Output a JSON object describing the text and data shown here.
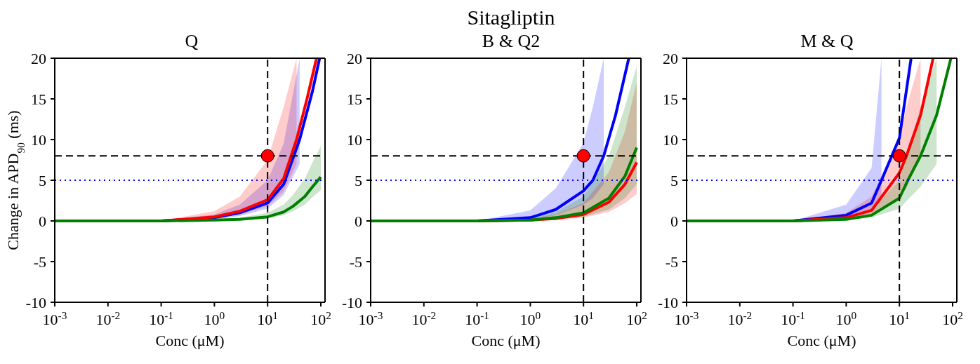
{
  "chart_data": [
    {
      "type": "line",
      "title": "Q",
      "xlabel": "Conc (μM)",
      "ylabel": "Change in APD$_{90}$ (ms)",
      "annotations": [
        "Sitagliptin"
      ],
      "log": "x",
      "xlim": [
        0.001,
        120
      ],
      "ylim": [
        -10,
        20
      ],
      "xticks": [
        {
          "value": 0.001,
          "label": "10$^{-3}$"
        },
        {
          "value": 0.01,
          "label": "10$^{-2}$"
        },
        {
          "value": 0.1,
          "label": "10$^{-1}$"
        },
        {
          "value": 1,
          "label": "10$^{0}$"
        },
        {
          "value": 10,
          "label": "10$^{1}$"
        },
        {
          "value": 100,
          "label": "10$^{2}$"
        }
      ],
      "yticks": [
        -10,
        -5,
        0,
        5,
        10,
        15,
        20
      ],
      "grid": false,
      "legend": false,
      "ref_lines": [
        {
          "axis": "y",
          "value": 8,
          "color": "#000000",
          "line_style": "dashed"
        },
        {
          "axis": "x",
          "value": 10,
          "color": "#000000",
          "line_style": "dashed"
        },
        {
          "axis": "y",
          "value": 5,
          "color": "#0000ff",
          "line_style": "dotted"
        }
      ],
      "series": [
        {
          "color": "#0000ff",
          "x": [
            0.001,
            0.01,
            0.1,
            1,
            3,
            10,
            20,
            40,
            70,
            95
          ],
          "values": [
            null,
            null,
            0,
            0.4,
            1,
            2.2,
            4.5,
            10,
            16,
            20
          ],
          "lower": [
            0,
            0,
            0,
            0.2,
            0.6,
            1.5,
            3.2,
            7,
            null,
            null
          ],
          "upper": [
            0,
            0,
            0,
            0.8,
            2,
            5,
            9.5,
            20,
            null,
            null
          ]
        },
        {
          "color": "#ff0000",
          "x": [
            0.001,
            0.01,
            0.1,
            1,
            3,
            10,
            20,
            35,
            55,
            83
          ],
          "values": [
            0,
            0,
            0,
            0.5,
            1.2,
            2.6,
            5.2,
            10,
            15,
            20
          ],
          "lower": [
            0,
            0,
            0,
            0.3,
            0.8,
            1.8,
            3.6,
            7,
            null,
            null
          ],
          "upper": [
            0,
            0,
            0,
            1.2,
            3,
            7.5,
            14,
            20,
            null,
            null
          ]
        },
        {
          "color": "#007f00",
          "x": [
            0.001,
            0.01,
            0.1,
            1,
            3,
            10,
            20,
            30,
            50,
            70,
            100
          ],
          "values": [
            0,
            0,
            0,
            0.1,
            0.2,
            0.5,
            1.1,
            1.8,
            3,
            4.2,
            5.4
          ],
          "lower": [
            0,
            0,
            0,
            0.05,
            0.1,
            0.3,
            0.7,
            1.2,
            2,
            2.9,
            3.8
          ],
          "upper": [
            0,
            0,
            0,
            0.2,
            0.4,
            1,
            2,
            3.2,
            5.2,
            7.2,
            9.2
          ]
        },
        {
          "type": "scatter",
          "color": "#ff0000",
          "marker": "circle",
          "x": [
            10
          ],
          "values": [
            8
          ]
        }
      ]
    },
    {
      "type": "line",
      "title": "B & Q2",
      "xlabel": "Conc (μM)",
      "log": "x",
      "xlim": [
        0.001,
        120
      ],
      "ylim": [
        -10,
        20
      ],
      "xticks": [
        {
          "value": 0.001,
          "label": "10$^{-3}$"
        },
        {
          "value": 0.01,
          "label": "10$^{-2}$"
        },
        {
          "value": 0.1,
          "label": "10$^{-1}$"
        },
        {
          "value": 1,
          "label": "10$^{0}$"
        },
        {
          "value": 10,
          "label": "10$^{1}$"
        },
        {
          "value": 100,
          "label": "10$^{2}$"
        }
      ],
      "yticks": [
        -10,
        -5,
        0,
        5,
        10,
        15,
        20
      ],
      "grid": false,
      "legend": false,
      "ref_lines": [
        {
          "axis": "y",
          "value": 8,
          "color": "#000000",
          "line_style": "dashed"
        },
        {
          "axis": "x",
          "value": 10,
          "color": "#000000",
          "line_style": "dashed"
        },
        {
          "axis": "y",
          "value": 5,
          "color": "#0000ff",
          "line_style": "dotted"
        }
      ],
      "series": [
        {
          "color": "#0000ff",
          "x": [
            0.001,
            0.01,
            0.1,
            1,
            3,
            10,
            15,
            24,
            40,
            71
          ],
          "values": [
            0,
            0,
            0,
            0.4,
            1.4,
            3.7,
            5,
            8,
            13,
            20
          ],
          "lower": [
            0,
            0,
            0,
            0.2,
            0.7,
            2,
            2.8,
            4.5,
            null,
            null
          ],
          "upper": [
            0,
            0,
            0,
            1.3,
            4,
            9.6,
            14,
            20,
            null,
            null
          ]
        },
        {
          "color": "#ff0000",
          "x": [
            0.001,
            0.01,
            0.1,
            1,
            3,
            10,
            30,
            60,
            100
          ],
          "values": [
            null,
            null,
            0,
            0.1,
            0.3,
            0.8,
            2.3,
            4.5,
            7.2
          ],
          "lower": [
            0,
            0,
            0,
            0.05,
            0.1,
            0.4,
            1.1,
            2.2,
            3.3
          ],
          "upper": [
            0,
            0,
            0,
            0.3,
            0.8,
            2.2,
            6,
            11,
            17
          ]
        },
        {
          "color": "#007f00",
          "x": [
            0.001,
            0.01,
            0.1,
            1,
            3,
            10,
            30,
            60,
            100
          ],
          "values": [
            0,
            0,
            0,
            0.1,
            0.4,
            1,
            2.8,
            5.5,
            9
          ],
          "lower": [
            0,
            0,
            0,
            0.05,
            0.2,
            0.5,
            1.4,
            2.8,
            4.5
          ],
          "upper": [
            0,
            0,
            0,
            0.4,
            1.1,
            3,
            8,
            14,
            19
          ]
        },
        {
          "type": "scatter",
          "color": "#ff0000",
          "marker": "circle",
          "x": [
            10
          ],
          "values": [
            8
          ]
        }
      ]
    },
    {
      "type": "line",
      "title": "M & Q",
      "xlabel": "Conc (μM)",
      "log": "x",
      "xlim": [
        0.001,
        120
      ],
      "ylim": [
        -10,
        20
      ],
      "xticks": [
        {
          "value": 0.001,
          "label": "10$^{-3}$"
        },
        {
          "value": 0.01,
          "label": "10$^{-2}$"
        },
        {
          "value": 0.1,
          "label": "10$^{-1}$"
        },
        {
          "value": 1,
          "label": "10$^{0}$"
        },
        {
          "value": 10,
          "label": "10$^{1}$"
        },
        {
          "value": 100,
          "label": "10$^{2}$"
        }
      ],
      "yticks": [
        -10,
        -5,
        0,
        5,
        10,
        15,
        20
      ],
      "grid": false,
      "legend": false,
      "ref_lines": [
        {
          "axis": "y",
          "value": 8,
          "color": "#000000",
          "line_style": "dashed"
        },
        {
          "axis": "x",
          "value": 10,
          "color": "#000000",
          "line_style": "dashed"
        },
        {
          "axis": "y",
          "value": 5,
          "color": "#0000ff",
          "line_style": "dotted"
        }
      ],
      "series": [
        {
          "color": "#0000ff",
          "x": [
            0.001,
            0.01,
            0.1,
            1,
            3,
            4.6,
            10,
            16.6
          ],
          "values": [
            0,
            0,
            0,
            0.7,
            2.2,
            5,
            10.2,
            20
          ],
          "lower": [
            0,
            0,
            0,
            0.4,
            1.2,
            2.5,
            null,
            null
          ],
          "upper": [
            0,
            0,
            0,
            2,
            6.5,
            20,
            null,
            null
          ]
        },
        {
          "color": "#ff0000",
          "x": [
            0.001,
            0.01,
            0.1,
            1,
            3,
            10,
            13.6,
            25,
            43
          ],
          "values": [
            0,
            0,
            0,
            0.4,
            1.3,
            5.9,
            8,
            13,
            20
          ],
          "lower": [
            0,
            0,
            0,
            0.2,
            0.6,
            2.8,
            4,
            8,
            null
          ],
          "upper": [
            0,
            0,
            0,
            1,
            3,
            10,
            14,
            20,
            null
          ]
        },
        {
          "color": "#007f00",
          "x": [
            0.001,
            0.01,
            0.1,
            1,
            3,
            10,
            14.4,
            25,
            50,
            93
          ],
          "values": [
            0,
            0,
            0,
            0.2,
            0.7,
            2.8,
            5,
            8,
            13,
            20
          ],
          "lower": [
            0,
            0,
            0,
            0.1,
            0.4,
            1.5,
            2.6,
            4.2,
            7,
            null
          ],
          "upper": [
            0,
            0,
            0,
            0.4,
            1.3,
            5,
            8.5,
            14,
            20,
            null
          ]
        },
        {
          "type": "scatter",
          "color": "#ff0000",
          "marker": "circle",
          "x": [
            10
          ],
          "values": [
            8
          ]
        }
      ]
    }
  ]
}
